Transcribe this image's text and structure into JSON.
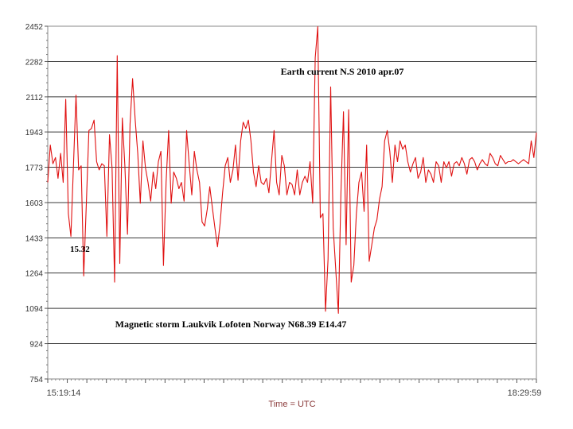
{
  "chart_data": {
    "type": "line",
    "title": "Earth current N.S 2010 apr.07",
    "subtitle": "Magnetic storm Laukvik Lofoten Norway  N68.39 E14.47",
    "annotation": "15.32",
    "xlabel": "Time = UTC",
    "ylabel": "",
    "x_tick_labels": [
      "15:19:14",
      "18:29:59"
    ],
    "x_range": [
      "15:19:14",
      "18:29:59"
    ],
    "y_ticks": [
      754,
      924,
      1094,
      1264,
      1433,
      1603,
      1773,
      1943,
      2112,
      2282,
      2452
    ],
    "ylim": [
      754,
      2452
    ],
    "grid": "horizontal",
    "series": [
      {
        "color": "#e01010",
        "x_minutes_from_start": [
          0,
          1,
          2,
          3,
          4,
          5,
          6,
          7,
          8,
          9,
          10,
          11,
          12,
          13,
          14,
          15,
          16,
          17,
          18,
          19,
          20,
          21,
          22,
          23,
          24,
          25,
          26,
          27,
          28,
          29,
          30,
          31,
          32,
          33,
          34,
          35,
          36,
          37,
          38,
          39,
          40,
          41,
          42,
          43,
          44,
          45,
          46,
          47,
          48,
          49,
          50,
          51,
          52,
          53,
          54,
          55,
          56,
          57,
          58,
          59,
          60,
          61,
          62,
          63,
          64,
          65,
          66,
          67,
          68,
          69,
          70,
          71,
          72,
          73,
          74,
          75,
          76,
          77,
          78,
          79,
          80,
          81,
          82,
          83,
          84,
          85,
          86,
          87,
          88,
          89,
          90,
          91,
          92,
          93,
          94,
          95,
          96,
          97,
          98,
          99,
          100,
          101,
          102,
          103,
          104,
          105,
          106,
          107,
          108,
          109,
          110,
          111,
          112,
          113,
          114,
          115,
          116,
          117,
          118,
          119,
          120,
          121,
          122,
          123,
          124,
          125,
          126,
          127,
          128,
          129,
          130,
          131,
          132,
          133,
          134,
          135,
          136,
          137,
          138,
          139,
          140,
          141,
          142,
          143,
          144,
          145,
          146,
          147,
          148,
          149,
          150,
          151,
          152,
          153,
          154,
          155,
          156,
          157,
          158,
          159,
          160,
          161,
          162,
          163,
          164,
          165,
          166,
          167,
          168,
          169,
          170,
          171,
          172,
          173,
          174,
          175,
          176,
          177,
          178,
          179,
          180,
          181,
          182,
          183,
          184,
          185,
          186,
          187,
          188,
          189,
          190
        ],
        "values": [
          1700,
          1880,
          1790,
          1820,
          1720,
          1840,
          1700,
          2100,
          1550,
          1440,
          1780,
          2120,
          1760,
          1780,
          1250,
          1600,
          1950,
          1960,
          2000,
          1800,
          1760,
          1790,
          1780,
          1440,
          1930,
          1770,
          1220,
          2310,
          1310,
          2010,
          1780,
          1450,
          1980,
          2200,
          2000,
          1840,
          1600,
          1900,
          1770,
          1700,
          1610,
          1750,
          1670,
          1800,
          1850,
          1300,
          1700,
          1950,
          1600,
          1750,
          1720,
          1670,
          1700,
          1610,
          1950,
          1790,
          1640,
          1850,
          1760,
          1700,
          1510,
          1490,
          1570,
          1680,
          1580,
          1480,
          1390,
          1500,
          1650,
          1780,
          1820,
          1700,
          1760,
          1880,
          1710,
          1900,
          1990,
          1960,
          2000,
          1900,
          1750,
          1680,
          1780,
          1700,
          1690,
          1720,
          1650,
          1800,
          1950,
          1700,
          1640,
          1830,
          1780,
          1640,
          1700,
          1690,
          1640,
          1760,
          1640,
          1700,
          1730,
          1700,
          1800,
          1600,
          2300,
          2450,
          1530,
          1550,
          1080,
          1330,
          2160,
          1480,
          1280,
          1070,
          1650,
          2040,
          1400,
          2050,
          1220,
          1300,
          1550,
          1700,
          1750,
          1560,
          1880,
          1320,
          1400,
          1480,
          1520,
          1620,
          1680,
          1900,
          1950,
          1850,
          1700,
          1880,
          1800,
          1900,
          1860,
          1880,
          1800,
          1750,
          1790,
          1820,
          1720,
          1750,
          1820,
          1700,
          1760,
          1740,
          1700,
          1800,
          1780,
          1700,
          1800,
          1770,
          1800,
          1730,
          1790,
          1800,
          1780,
          1820,
          1790,
          1740,
          1810,
          1820,
          1800,
          1760,
          1790,
          1810,
          1790,
          1780,
          1840,
          1820,
          1790,
          1780,
          1830,
          1810,
          1790,
          1800,
          1800,
          1810,
          1800,
          1790,
          1800,
          1810,
          1800,
          1790,
          1900,
          1820,
          1940
        ]
      }
    ]
  }
}
